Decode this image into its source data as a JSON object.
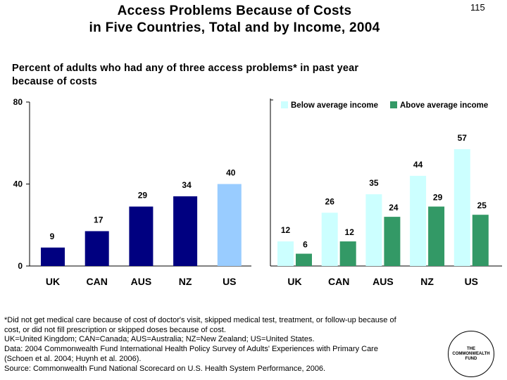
{
  "slide": {
    "number": "115",
    "title_lines": [
      "Access Problems Because of Costs",
      "in Five Countries, Total and by Income, 2004"
    ],
    "subtitle_lines": [
      "Percent of adults who had any of three access problems* in past year",
      "because of costs"
    ]
  },
  "chart_data": [
    {
      "type": "bar",
      "name": "total",
      "categories": [
        "UK",
        "CAN",
        "AUS",
        "NZ",
        "US"
      ],
      "values": [
        9,
        17,
        29,
        34,
        40
      ],
      "bar_colors": [
        "#000080",
        "#000080",
        "#000080",
        "#000080",
        "#99CCFF"
      ],
      "ylim": [
        0,
        80
      ],
      "yticks": [
        0,
        40,
        80
      ]
    },
    {
      "type": "bar",
      "name": "by-income",
      "categories": [
        "UK",
        "CAN",
        "AUS",
        "NZ",
        "US"
      ],
      "series": [
        {
          "name": "Below average income",
          "color": "#CCFFFF",
          "values": [
            12,
            26,
            35,
            44,
            57
          ]
        },
        {
          "name": "Above average income",
          "color": "#339966",
          "values": [
            6,
            12,
            24,
            29,
            25
          ]
        }
      ],
      "ylim": [
        0,
        80
      ],
      "legend": "top"
    }
  ],
  "footnote": {
    "lines": [
      "*Did not get medical care because of cost of doctor's visit, skipped medical test, treatment, or follow-up because of",
      "cost, or did not fill prescription or skipped doses because of cost.",
      "UK=United Kingdom; CAN=Canada; AUS=Australia; NZ=New Zealand; US=United States.",
      "Data: 2004 Commonwealth Fund International Health Policy Survey of Adults' Experiences with Primary Care",
      "(Schoen et al. 2004; Huynh et al. 2006).",
      "Source: Commonwealth Fund National Scorecard on U.S. Health System Performance, 2006."
    ]
  },
  "logo": {
    "lines": [
      "THE",
      "COMMONWEALTH",
      "FUND"
    ]
  }
}
